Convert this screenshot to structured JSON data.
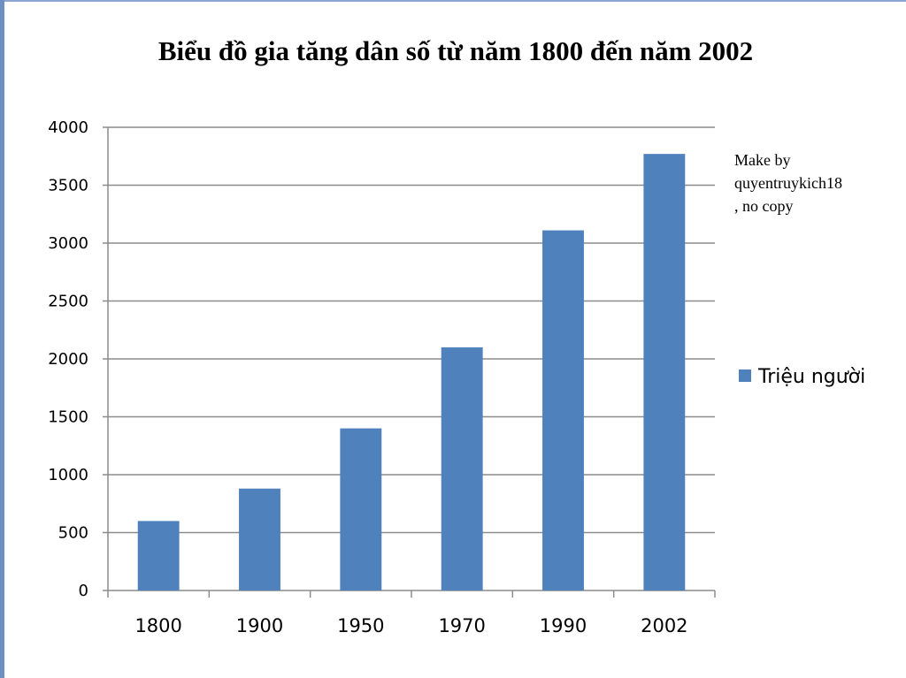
{
  "chart_data": {
    "type": "bar",
    "title": "Biểu đồ gia tăng dân số từ năm 1800 đến năm 2002",
    "categories": [
      "1800",
      "1900",
      "1950",
      "1970",
      "1990",
      "2002"
    ],
    "series": [
      {
        "name": "Triệu người",
        "values": [
          600,
          880,
          1400,
          2100,
          3110,
          3770
        ]
      }
    ],
    "ylim": [
      0,
      4000
    ],
    "yticks": [
      0,
      500,
      1000,
      1500,
      2000,
      2500,
      3000,
      3500,
      4000
    ],
    "grid": true,
    "legend_position": "right",
    "bar_color": "#4f81bd",
    "grid_color": "#8c8c8c",
    "annotation": [
      "Make by",
      "quyentruykich18",
      ", no copy"
    ]
  }
}
